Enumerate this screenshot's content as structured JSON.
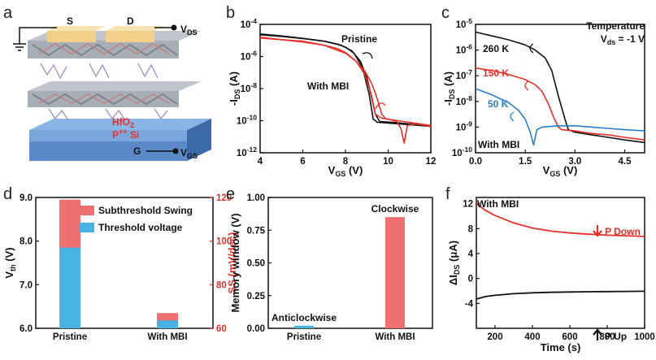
{
  "colors": {
    "black": "#111111",
    "red": "#e8302a",
    "blue": "#2a7fc8",
    "bar_red": "#f07070",
    "bar_blue": "#49b3e6",
    "substrate": "#5a88c8",
    "gold": "#f3d089"
  },
  "panel_a": {
    "label": "a",
    "source": "S",
    "drain": "D",
    "gate": "G",
    "dielectric": "HfO",
    "dielectric_sub": "2",
    "substrate_pre": "P",
    "substrate_sup": "++",
    "substrate_post": " Si",
    "vds_main": "V",
    "vds_sub": "DS",
    "vgs_main": "V",
    "vgs_sub": "GS"
  },
  "chart_data": [
    {
      "id": "b",
      "type": "line",
      "panel_label": "b",
      "xlabel_main": "V",
      "xlabel_sub": "GS",
      "xlabel_unit": " (V)",
      "ylabel_pre": "-I",
      "ylabel_sub": "DS",
      "ylabel_unit": " (A)",
      "xlim": [
        4,
        12
      ],
      "ylim_log10": [
        -12,
        -4
      ],
      "xticks": [
        "4",
        "6",
        "8",
        "10",
        "12"
      ],
      "yticks": [
        {
          "m": "10",
          "e": "-12"
        },
        {
          "m": "10",
          "e": "-10"
        },
        {
          "m": "10",
          "e": "-8"
        },
        {
          "m": "10",
          "e": "-6"
        },
        {
          "m": "10",
          "e": "-4"
        }
      ],
      "ann_pristine": "Pristine",
      "ann_mbi": "With MBI",
      "series": [
        {
          "name": "Pristine forward",
          "x": [
            4,
            5,
            6,
            7,
            7.6,
            8,
            8.4,
            8.8,
            9.1,
            9.3,
            9.5,
            10,
            10.5,
            11,
            11.5,
            12
          ],
          "log10y": [
            -4.6,
            -4.72,
            -4.87,
            -5.05,
            -5.22,
            -5.42,
            -5.8,
            -6.7,
            -8.3,
            -9.9,
            -10.1,
            -10.15,
            -10.2,
            -10.25,
            -10.3,
            -10.35
          ]
        },
        {
          "name": "Pristine reverse",
          "x": [
            12,
            11,
            10.2,
            9.6,
            9.4,
            9.2,
            9,
            8.7,
            8.3,
            7.8,
            7,
            6,
            5,
            4
          ],
          "log10y": [
            -10.3,
            -10.2,
            -10.1,
            -10.05,
            -9.6,
            -8.4,
            -7.3,
            -6.3,
            -5.65,
            -5.3,
            -5.05,
            -4.88,
            -4.75,
            -4.65
          ]
        },
        {
          "name": "With MBI forward",
          "x": [
            4,
            5,
            6,
            7,
            7.6,
            8,
            8.5,
            8.9,
            9.2,
            9.4,
            9.7,
            10,
            10.4,
            10.6,
            10.75,
            10.9,
            11.3,
            11.8,
            12
          ],
          "log10y": [
            -4.8,
            -4.95,
            -5.1,
            -5.3,
            -5.5,
            -5.75,
            -6.3,
            -7.1,
            -8.3,
            -9.6,
            -9.85,
            -9.9,
            -10.05,
            -10.5,
            -11.4,
            -10.3,
            -10.2,
            -10.3,
            -10.4
          ]
        },
        {
          "name": "With MBI reverse",
          "x": [
            12,
            11,
            10.2,
            9.9,
            9.7,
            9.55,
            9.4,
            9.2,
            8.9,
            8.5,
            8,
            7,
            6,
            5,
            4
          ],
          "log10y": [
            -10.3,
            -10.1,
            -9.95,
            -9.9,
            -9.6,
            -8.9,
            -8.3,
            -7.6,
            -6.9,
            -6.3,
            -5.8,
            -5.3,
            -5.05,
            -4.95,
            -4.85
          ]
        }
      ]
    },
    {
      "id": "c",
      "type": "line",
      "panel_label": "c",
      "xlabel_main": "V",
      "xlabel_sub": "GS",
      "xlabel_unit": " (V)",
      "ylabel_pre": "-I",
      "ylabel_sub": "DS",
      "ylabel_unit": " (A)",
      "xlim": [
        0,
        5.1
      ],
      "ylim_log10": [
        -10,
        -5
      ],
      "xticks": [
        "0.0",
        "1.5",
        "3.0",
        "4.5"
      ],
      "yticks": [
        {
          "m": "10",
          "e": "-10"
        },
        {
          "m": "10",
          "e": "-9"
        },
        {
          "m": "10",
          "e": "-8"
        },
        {
          "m": "10",
          "e": "-7"
        },
        {
          "m": "10",
          "e": "-6"
        },
        {
          "m": "10",
          "e": "-5"
        }
      ],
      "ann_temp": "Temperature",
      "ann_vds": "V",
      "ann_vds_sub": "ds",
      "ann_vds_val": " = -1 V",
      "ann_mbi": "With MBI",
      "labels": [
        "260 K",
        "150 K",
        "50 K"
      ],
      "series": [
        {
          "name": "260 K",
          "x": [
            0,
            0.5,
            1,
            1.5,
            1.8,
            2.1,
            2.3,
            2.5,
            2.7,
            2.8,
            3,
            3.5,
            4,
            4.5,
            5.1
          ],
          "log10y": [
            -5.3,
            -5.45,
            -5.6,
            -5.8,
            -6.0,
            -6.3,
            -6.8,
            -7.8,
            -8.7,
            -9.1,
            -9.2,
            -9.3,
            -9.4,
            -9.5,
            -9.6
          ]
        },
        {
          "name": "150 K",
          "x": [
            0,
            0.5,
            1,
            1.5,
            1.8,
            2.0,
            2.2,
            2.35,
            2.5,
            2.6,
            3,
            3.5,
            4,
            4.5,
            5.1
          ],
          "log10y": [
            -6.7,
            -6.8,
            -6.95,
            -7.15,
            -7.35,
            -7.6,
            -8.1,
            -8.6,
            -9.0,
            -9.1,
            -9.15,
            -9.25,
            -9.3,
            -9.4,
            -9.5
          ]
        },
        {
          "name": "50 K",
          "x": [
            0,
            0.5,
            1,
            1.3,
            1.5,
            1.65,
            1.75,
            1.85,
            2.0,
            2.5,
            3,
            3.5,
            4,
            4.5,
            5.1
          ],
          "log10y": [
            -7.5,
            -7.75,
            -8.05,
            -8.35,
            -8.7,
            -9.2,
            -9.7,
            -9.1,
            -9.0,
            -8.95,
            -8.95,
            -9.0,
            -9.05,
            -9.1,
            -9.15
          ]
        }
      ]
    },
    {
      "id": "d",
      "type": "bar",
      "panel_label": "d",
      "categories": [
        "Pristine",
        "With MBI"
      ],
      "ylabel_left_main": "V",
      "ylabel_left_sub": "th",
      "ylabel_left_unit": " (V)",
      "ylabel_right": "SS (mV/dec)",
      "ylim_left": [
        6.0,
        9.0
      ],
      "ylim_right": [
        60,
        120
      ],
      "yticks_left": [
        "6.0",
        "7.0",
        "8.0",
        "9.0"
      ],
      "yticks_right": [
        "60",
        "80",
        "100",
        "120"
      ],
      "series": [
        {
          "name": "Subthreshold Swing",
          "axis": "right",
          "values": [
            119,
            67
          ]
        },
        {
          "name": "Threshold voltage",
          "axis": "left",
          "values": [
            7.85,
            6.18
          ]
        }
      ]
    },
    {
      "id": "e",
      "type": "bar",
      "panel_label": "e",
      "categories": [
        "Pristine",
        "With MBI"
      ],
      "ylabel": "Memory window (V)",
      "ylim": [
        0.0,
        1.0
      ],
      "yticks": [
        "0.00",
        "0.25",
        "0.50",
        "0.75",
        "1.00"
      ],
      "values": [
        0.02,
        0.85
      ],
      "bar_labels": [
        "Anticlockwise",
        "Clockwise"
      ]
    },
    {
      "id": "f",
      "type": "line",
      "panel_label": "f",
      "xlabel": "Time (s)",
      "ylabel_pre": "ΔI",
      "ylabel_sub": "DS",
      "ylabel_unit": " (μA)",
      "xlim": [
        100,
        1000
      ],
      "ylim": [
        -8,
        13
      ],
      "xticks": [
        "200",
        "400",
        "600",
        "800",
        "1000"
      ],
      "yticks": [
        "-4",
        "0",
        "4",
        "8",
        "12"
      ],
      "ann_mbi": "With MBI",
      "ann_down": "P Down",
      "ann_up": "P Up",
      "series": [
        {
          "name": "P Down",
          "x": [
            100,
            150,
            200,
            300,
            400,
            500,
            600,
            700,
            800,
            900,
            1000
          ],
          "y": [
            12.0,
            10.9,
            10.1,
            8.9,
            8.1,
            7.6,
            7.3,
            7.1,
            6.95,
            6.85,
            6.75
          ]
        },
        {
          "name": "P Up",
          "x": [
            100,
            150,
            200,
            300,
            400,
            500,
            600,
            700,
            800,
            900,
            1000
          ],
          "y": [
            -3.3,
            -2.9,
            -2.7,
            -2.45,
            -2.3,
            -2.22,
            -2.17,
            -2.13,
            -2.1,
            -2.08,
            -2.05
          ]
        }
      ]
    }
  ]
}
